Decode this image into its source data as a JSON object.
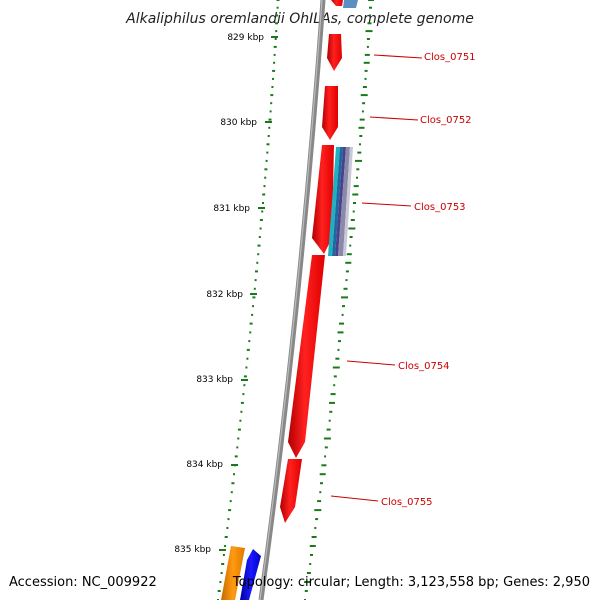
{
  "title": "Alkaliphilus oremlandii OhILAs, complete genome",
  "accession": "Accession: NC_009922",
  "topology": "Topology: circular; Length: 3,123,558 bp; Genes: 2,950",
  "colors": {
    "gene_forward": "#ff0000",
    "gene_reverse_orange": "#ff8c00",
    "gene_reverse_blue": "#0000ff",
    "backbone": "#888888",
    "gc_ticks": "#1a7a1a",
    "label": "#cc0000"
  },
  "kbp_ticks": [
    "829 kbp",
    "830 kbp",
    "831 kbp",
    "832 kbp",
    "833 kbp",
    "834 kbp",
    "835 kbp"
  ],
  "genes": [
    {
      "label": "Clos_0751"
    },
    {
      "label": "Clos_0752"
    },
    {
      "label": "Clos_0753"
    },
    {
      "label": "Clos_0754"
    },
    {
      "label": "Clos_0755"
    }
  ]
}
